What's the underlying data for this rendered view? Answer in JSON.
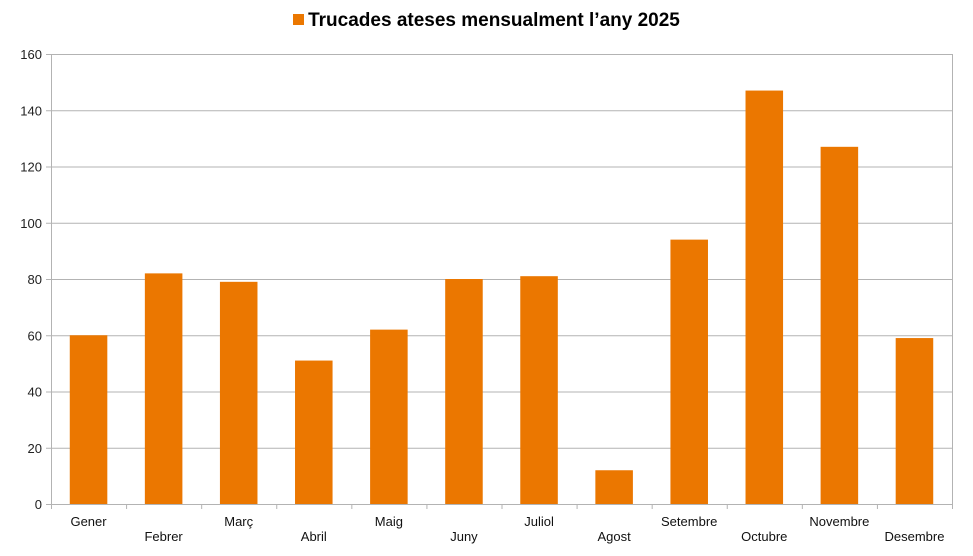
{
  "chart_data": {
    "type": "bar",
    "title": "Trucades ateses mensualment l’any 2025",
    "legend": [
      "Trucades ateses mensualment l’any 2025"
    ],
    "legend_position": "top",
    "categories": [
      "Gener",
      "Febrer",
      "Març",
      "Abril",
      "Maig",
      "Juny",
      "Juliol",
      "Agost",
      "Setembre",
      "Octubre",
      "Novembre",
      "Desembre"
    ],
    "series": [
      {
        "name": "Trucades ateses mensualment l’any 2025",
        "values": [
          60,
          82,
          79,
          51,
          62,
          80,
          81,
          12,
          94,
          147,
          127,
          59
        ],
        "color": "#eb7700"
      }
    ],
    "xlabel": "",
    "ylabel": "",
    "ylim": [
      0,
      160
    ],
    "yticks": [
      0,
      20,
      40,
      60,
      80,
      100,
      120,
      140,
      160
    ],
    "grid": true
  },
  "colors": {
    "bar": "#eb7700",
    "grid": "#b3b3b3"
  }
}
